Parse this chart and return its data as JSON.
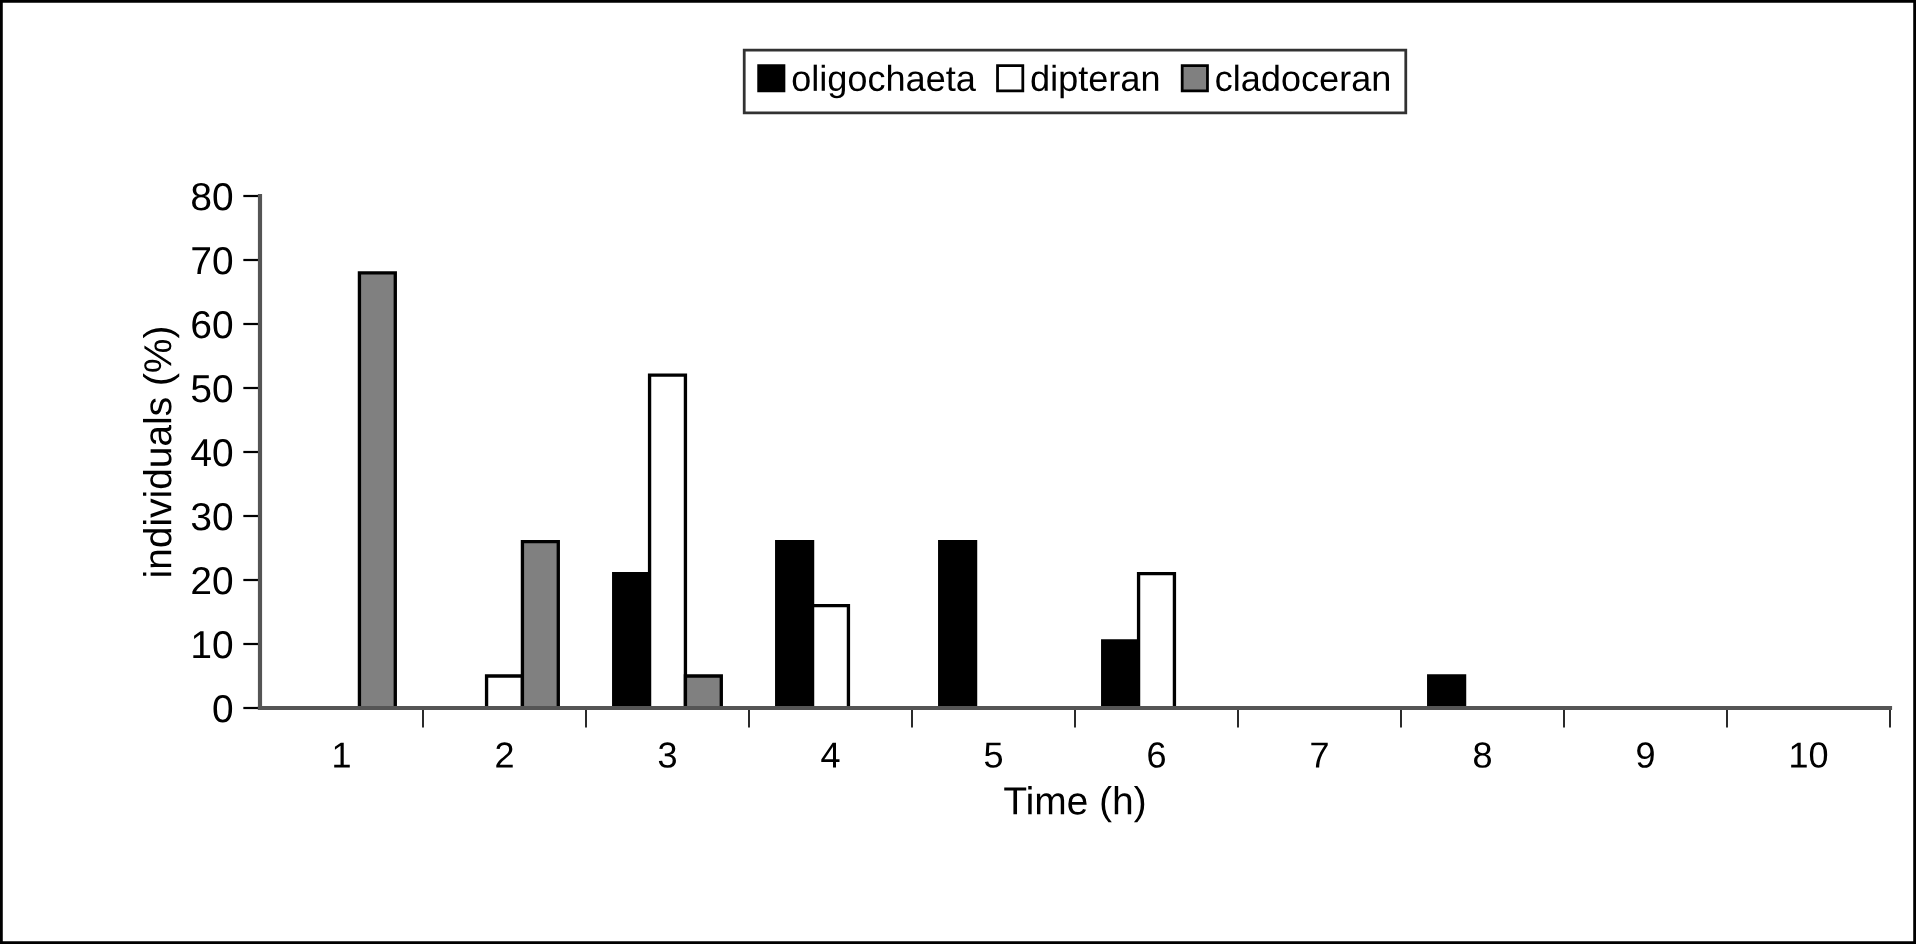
{
  "chart_data": {
    "type": "bar",
    "xlabel": "Time (h)",
    "ylabel": "individuals (%)",
    "categories": [
      "1",
      "2",
      "3",
      "4",
      "5",
      "6",
      "7",
      "8",
      "9",
      "10"
    ],
    "series": [
      {
        "name": "oligochaeta",
        "color": "#000000",
        "values": [
          null,
          null,
          21,
          26,
          26,
          10.5,
          null,
          5,
          null,
          null
        ]
      },
      {
        "name": "dipteran",
        "color": "#ffffff",
        "values": [
          null,
          5,
          52,
          16,
          null,
          21,
          null,
          null,
          null,
          null
        ]
      },
      {
        "name": "cladoceran",
        "color": "#808080",
        "values": [
          68,
          26,
          5,
          null,
          null,
          null,
          null,
          null,
          null,
          null
        ]
      }
    ],
    "ylim": [
      0,
      80
    ],
    "yticks": [
      0,
      10,
      20,
      30,
      40,
      50,
      60,
      70,
      80
    ],
    "grid": false,
    "legend": "top"
  }
}
